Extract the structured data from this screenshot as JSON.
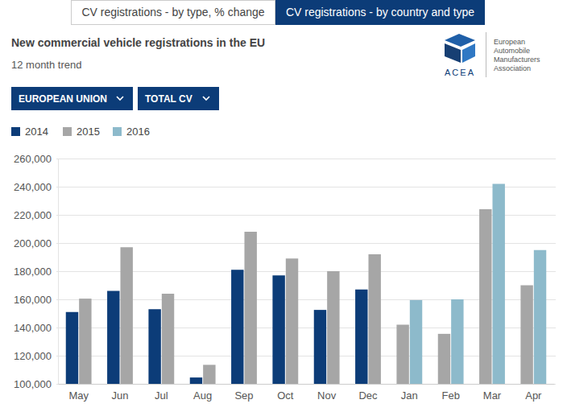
{
  "header": {
    "tabs": [
      "CV registrations - by type, % change",
      "CV registrations - by country and type"
    ],
    "selectors": [
      "EUROPEAN UNION",
      "TOTAL CV"
    ],
    "logo": {
      "name": "ACEA",
      "lines": [
        "European",
        "Automobile",
        "Manufacturers",
        "Association"
      ]
    }
  },
  "chart_data": {
    "type": "bar",
    "title": "New commercial vehicle registrations in the EU",
    "subtitle": "12 month trend",
    "categories": [
      "May",
      "Jun",
      "Jul",
      "Aug",
      "Sep",
      "Oct",
      "Nov",
      "Dec",
      "Jan",
      "Feb",
      "Mar",
      "Apr"
    ],
    "series": [
      {
        "name": "2014",
        "color": "#0c3c78",
        "values": [
          151000,
          166000,
          153000,
          104500,
          181000,
          177000,
          152500,
          167000,
          null,
          null,
          null,
          null
        ]
      },
      {
        "name": "2015",
        "color": "#a6a6a6",
        "values": [
          160500,
          197000,
          164000,
          113500,
          208000,
          189000,
          180000,
          192000,
          142000,
          135500,
          224000,
          170000
        ]
      },
      {
        "name": "2016",
        "color": "#8dbacb",
        "values": [
          null,
          null,
          null,
          null,
          null,
          null,
          null,
          null,
          159500,
          160000,
          242000,
          195000
        ]
      }
    ],
    "ylim": [
      100000,
      260000
    ],
    "yticks": [
      {
        "value": 100000,
        "label": "100,000"
      },
      {
        "value": 120000,
        "label": "120,000"
      },
      {
        "value": 140000,
        "label": "140,000"
      },
      {
        "value": 160000,
        "label": "160,000"
      },
      {
        "value": 180000,
        "label": "180,000"
      },
      {
        "value": 200000,
        "label": "200,000"
      },
      {
        "value": 220000,
        "label": "220,000"
      },
      {
        "value": 240000,
        "label": "240,000"
      },
      {
        "value": 260000,
        "label": "260,000"
      }
    ],
    "grid": true,
    "legend": "top-left"
  }
}
